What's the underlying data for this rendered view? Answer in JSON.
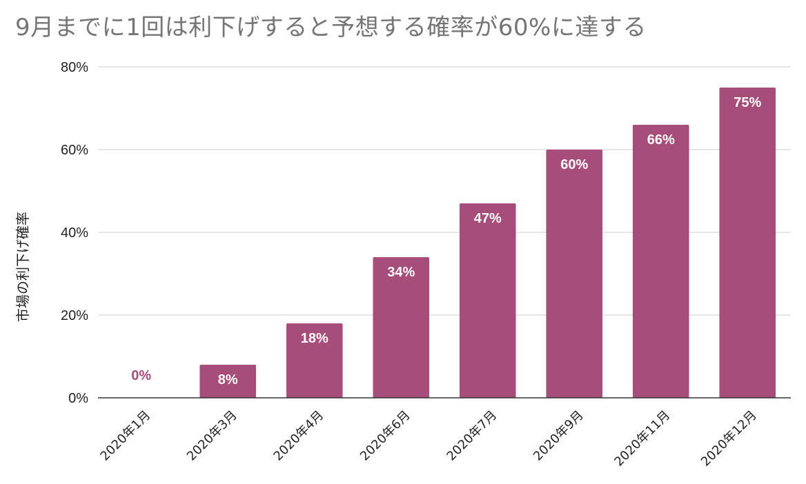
{
  "chart_data": {
    "type": "bar",
    "title": "9月までに1回は利下げすると予想する確率が60%に達する",
    "ylabel": "市場の利下げ確率",
    "xlabel": "",
    "categories": [
      "2020年1月",
      "2020年3月",
      "2020年4月",
      "2020年6月",
      "2020年7月",
      "2020年9月",
      "2020年11月",
      "2020年12月"
    ],
    "values": [
      0,
      8,
      18,
      34,
      47,
      60,
      66,
      75
    ],
    "value_labels": [
      "0%",
      "8%",
      "18%",
      "34%",
      "47%",
      "60%",
      "66%",
      "75%"
    ],
    "ylim": [
      0,
      80
    ],
    "yticks": [
      0,
      20,
      40,
      60,
      80
    ],
    "ytick_labels": [
      "0%",
      "20%",
      "40%",
      "60%",
      "80%"
    ],
    "grid": true,
    "legend": "none",
    "colors": {
      "bar": "#a64d79",
      "value_label_inside": "#ffffff",
      "value_label_outside": "#a64d79",
      "title": "#757575",
      "grid": "#cccccc",
      "axis": "#333333"
    }
  }
}
